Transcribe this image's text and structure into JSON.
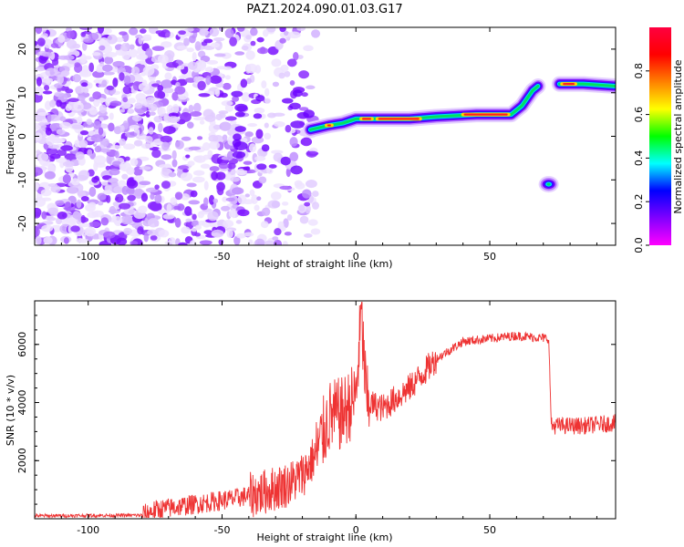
{
  "figure": {
    "title": "PAZ1.2024.090.01.03.G17"
  },
  "chart_data": [
    {
      "type": "heatmap",
      "title": "PAZ1.2024.090.01.03.G17",
      "xlabel": "Height of straight line (km)",
      "ylabel": "Frequency (Hz)",
      "xlim": [
        -120,
        97
      ],
      "ylim": [
        -25,
        25
      ],
      "x_ticks": [
        -100,
        -50,
        0,
        50
      ],
      "y_ticks": [
        -20,
        -10,
        0,
        10,
        20
      ],
      "colorbar": {
        "label": "Normalized spectral amplitude",
        "range": [
          0,
          1
        ],
        "ticks": [
          0.0,
          0.2,
          0.4,
          0.6,
          0.8
        ],
        "colormap": "gist_rainbow_r",
        "stops": [
          "#ff00ff",
          "#8000ff",
          "#0000ff",
          "#00ffff",
          "#00ff00",
          "#ffff00",
          "#ff8000",
          "#ff0000",
          "#ff0040"
        ]
      },
      "tone_track": [
        {
          "x": -17,
          "y": 1.5
        },
        {
          "x": -10,
          "y": 2.5
        },
        {
          "x": -5,
          "y": 3.0
        },
        {
          "x": 0,
          "y": 4.0
        },
        {
          "x": 10,
          "y": 4.0
        },
        {
          "x": 20,
          "y": 4.0
        },
        {
          "x": 30,
          "y": 4.5
        },
        {
          "x": 45,
          "y": 5.0
        },
        {
          "x": 58,
          "y": 5.0
        },
        {
          "x": 62,
          "y": 7.0
        },
        {
          "x": 66,
          "y": 10.5
        },
        {
          "x": 68,
          "y": 11.5
        }
      ],
      "tone_track_2": [
        {
          "x": 76,
          "y": 12.0
        },
        {
          "x": 85,
          "y": 12.0
        },
        {
          "x": 97,
          "y": 11.5
        }
      ],
      "tone_blob": {
        "x": 72,
        "y": -11
      }
    },
    {
      "type": "line",
      "title": "",
      "xlabel": "Height of straight line (km)",
      "ylabel": "SNR (10 * v/v)",
      "xlim": [
        -120,
        97
      ],
      "ylim": [
        0,
        7500
      ],
      "x_ticks": [
        -100,
        -50,
        0,
        50
      ],
      "y_ticks": [
        2000,
        4000,
        6000
      ],
      "color": "#ee3333",
      "anchors": [
        {
          "x": -120,
          "y": 100
        },
        {
          "x": -80,
          "y": 120
        },
        {
          "x": -75,
          "y": 300
        },
        {
          "x": -60,
          "y": 500
        },
        {
          "x": -45,
          "y": 700
        },
        {
          "x": -35,
          "y": 900
        },
        {
          "x": -25,
          "y": 1200
        },
        {
          "x": -20,
          "y": 1500
        },
        {
          "x": -15,
          "y": 2200
        },
        {
          "x": -10,
          "y": 3500
        },
        {
          "x": -5,
          "y": 3600
        },
        {
          "x": 0,
          "y": 4200
        },
        {
          "x": 2,
          "y": 7000
        },
        {
          "x": 4,
          "y": 4000
        },
        {
          "x": 10,
          "y": 3800
        },
        {
          "x": 20,
          "y": 4500
        },
        {
          "x": 30,
          "y": 5500
        },
        {
          "x": 40,
          "y": 6100
        },
        {
          "x": 50,
          "y": 6200
        },
        {
          "x": 60,
          "y": 6300
        },
        {
          "x": 72,
          "y": 6200
        },
        {
          "x": 73,
          "y": 3200
        },
        {
          "x": 85,
          "y": 3200
        },
        {
          "x": 97,
          "y": 3300
        }
      ]
    }
  ]
}
